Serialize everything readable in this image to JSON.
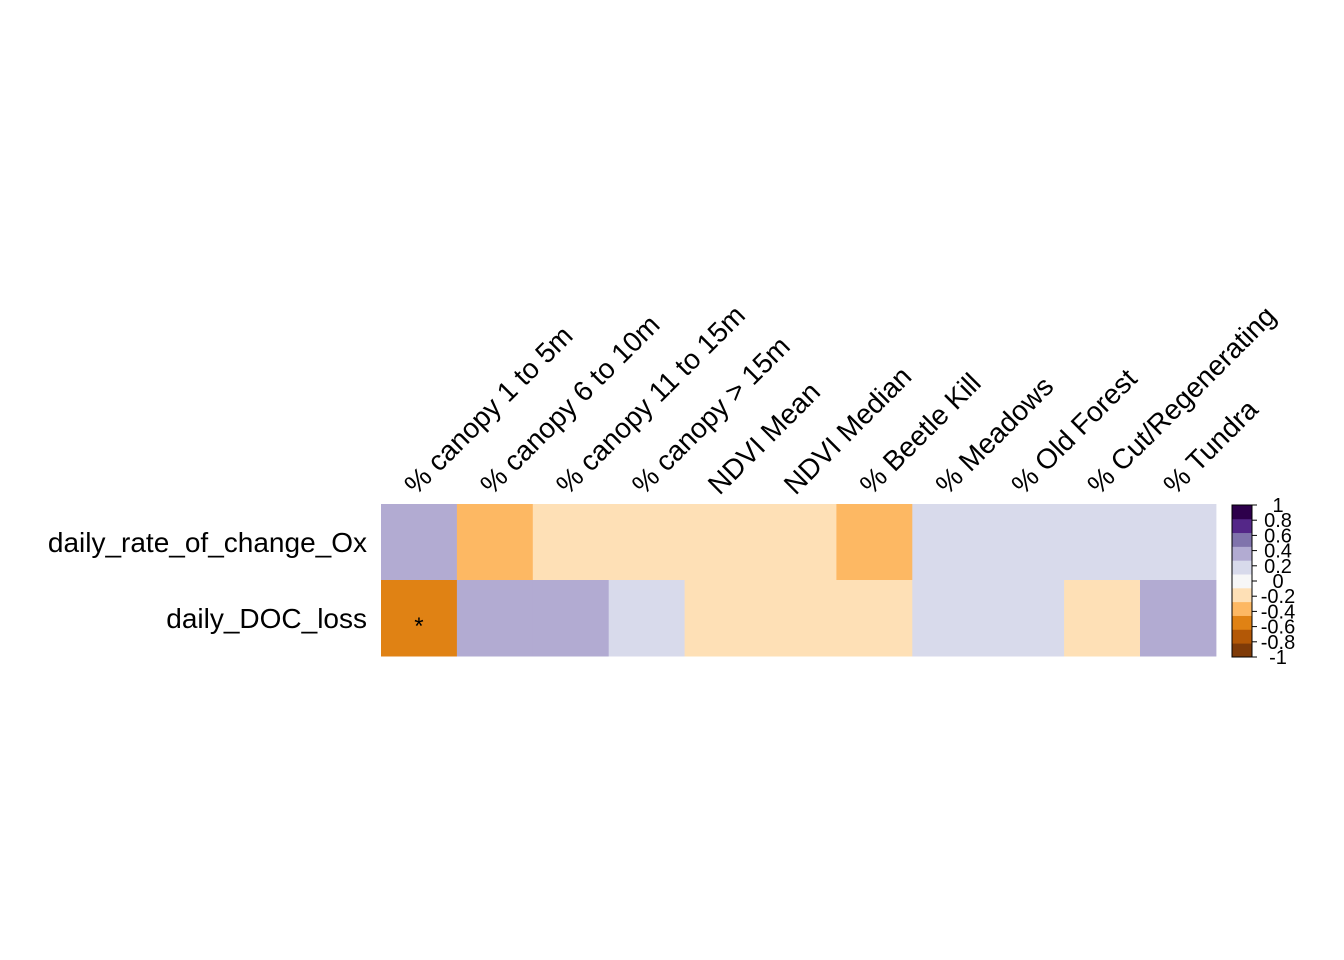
{
  "chart_data": {
    "type": "heatmap",
    "rows": [
      "daily_rate_of_change_Ox",
      "daily_DOC_loss"
    ],
    "columns": [
      "% canopy 1 to 5m",
      "% canopy 6 to 10m",
      "% canopy 11 to 15m",
      "% canopy > 15m",
      "NDVI Mean",
      "NDVI Median",
      "% Beetle Kill",
      "% Meadows",
      "% Old Forest",
      "% Cut/Regenerating",
      "% Tundra"
    ],
    "values": [
      [
        0.3,
        -0.3,
        -0.1,
        -0.1,
        -0.1,
        -0.1,
        -0.3,
        0.1,
        0.1,
        0.1,
        0.1
      ],
      [
        -0.5,
        0.3,
        0.3,
        0.1,
        -0.1,
        -0.1,
        -0.1,
        0.1,
        0.1,
        -0.1,
        0.3
      ]
    ],
    "significance": [
      [
        "",
        "",
        "",
        "",
        "",
        "",
        "",
        "",
        "",
        "",
        ""
      ],
      [
        "*",
        "",
        "",
        "",
        "",
        "",
        "",
        "",
        "",
        "",
        ""
      ]
    ],
    "colorbar": {
      "range": [
        -1,
        1
      ],
      "ticks": [
        "1",
        "0.8",
        "0.6",
        "0.4",
        "0.2",
        "0",
        "-0.2",
        "-0.4",
        "-0.6",
        "-0.8",
        "-1"
      ],
      "colors": [
        "#7f3b08",
        "#b35806",
        "#e08214",
        "#fdb863",
        "#fee0b6",
        "#f7f7f7",
        "#d8daeb",
        "#b2abd2",
        "#8073ac",
        "#542788",
        "#2d004b"
      ]
    },
    "grid": false,
    "legend_position": "right"
  }
}
